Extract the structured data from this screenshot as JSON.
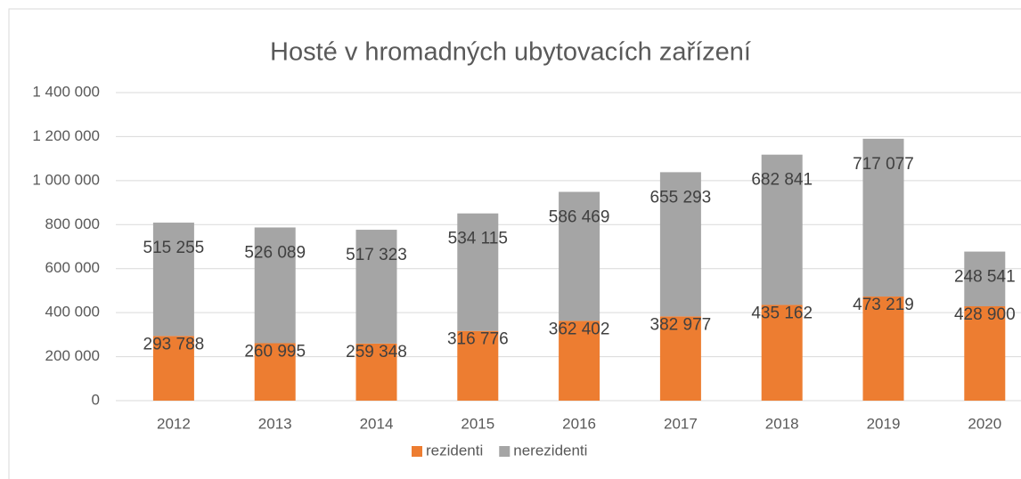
{
  "chart_data": {
    "type": "stacked_bar",
    "title": "Hosté v hromadných ubytovacích zařízení",
    "categories": [
      "2012",
      "2013",
      "2014",
      "2015",
      "2016",
      "2017",
      "2018",
      "2019",
      "2020"
    ],
    "series": [
      {
        "name": "rezidenti",
        "color": "#ed7d31",
        "values": [
          293788,
          260995,
          259348,
          316776,
          362402,
          382977,
          435162,
          473219,
          428900
        ],
        "value_labels": [
          "293 788",
          "260 995",
          "259 348",
          "316 776",
          "362 402",
          "382 977",
          "435 162",
          "473 219",
          "428 900"
        ]
      },
      {
        "name": "nerezidenti",
        "color": "#a5a5a5",
        "values": [
          515255,
          526089,
          517323,
          534115,
          586469,
          655293,
          682841,
          717077,
          248541
        ],
        "value_labels": [
          "515 255",
          "526 089",
          "517 323",
          "534 115",
          "586 469",
          "655 293",
          "682 841",
          "717 077",
          "248 541"
        ]
      }
    ],
    "ylim": [
      0,
      1400000
    ],
    "yticks": [
      0,
      {
        "value": 200000,
        "label": "200 000"
      },
      {
        "value": 400000,
        "label": "400 000"
      },
      {
        "value": 600000,
        "label": "600 000"
      },
      {
        "value": 800000,
        "label": "800 000"
      },
      {
        "value": 1000000,
        "label": "1 000 000"
      },
      {
        "value": 1200000,
        "label": "1 200 000"
      },
      {
        "value": 1400000,
        "label": "1 400 000"
      }
    ],
    "grid": true,
    "legend": "bottom"
  }
}
